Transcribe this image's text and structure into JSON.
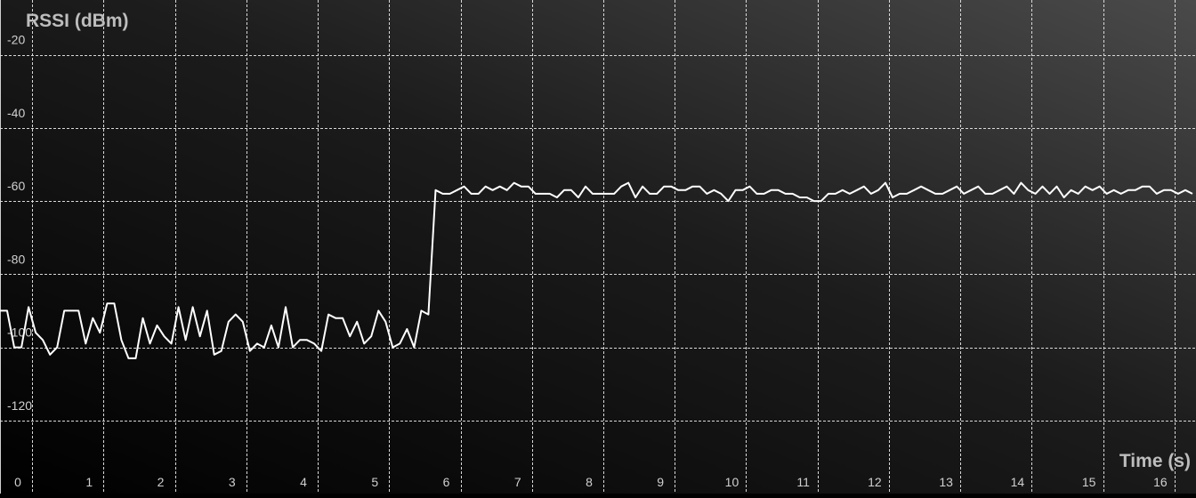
{
  "chart_data": {
    "type": "line",
    "title": "",
    "ylabel": "RSSI (dBm)",
    "xlabel": "Time (s)",
    "xlim": [
      -0.25,
      16.5
    ],
    "ylim": [
      -140,
      -5
    ],
    "grid": true,
    "y_ticks": [
      -20,
      -40,
      -60,
      -80,
      -100,
      -120
    ],
    "x_ticks": [
      0,
      1,
      2,
      3,
      4,
      5,
      6,
      7,
      8,
      9,
      10,
      11,
      12,
      13,
      14,
      15,
      16
    ],
    "y_grid": [
      -20,
      -40,
      -60,
      -80,
      -100,
      -120
    ],
    "x_grid": [
      0.2,
      1.2,
      2.2,
      3.2,
      4.2,
      5.2,
      6.2,
      7.2,
      8.2,
      9.2,
      10.2,
      11.2,
      12.2,
      13.2,
      14.2,
      15.2,
      16.2
    ],
    "series": [
      {
        "name": "RSSI",
        "color": "#ffffff",
        "x": [
          -0.25,
          -0.15,
          -0.05,
          0.05,
          0.15,
          0.25,
          0.35,
          0.45,
          0.55,
          0.65,
          0.75,
          0.85,
          0.95,
          1.05,
          1.15,
          1.25,
          1.35,
          1.45,
          1.55,
          1.65,
          1.75,
          1.85,
          1.95,
          2.05,
          2.15,
          2.25,
          2.35,
          2.45,
          2.55,
          2.65,
          2.75,
          2.85,
          2.95,
          3.05,
          3.15,
          3.25,
          3.35,
          3.45,
          3.55,
          3.65,
          3.75,
          3.85,
          3.95,
          4.05,
          4.15,
          4.25,
          4.35,
          4.45,
          4.55,
          4.65,
          4.75,
          4.85,
          4.95,
          5.05,
          5.15,
          5.25,
          5.35,
          5.45,
          5.55,
          5.65,
          5.75,
          5.85,
          5.95,
          6.05,
          6.15,
          6.25,
          6.35,
          6.45,
          6.55,
          6.65,
          6.75,
          6.85,
          6.95,
          7.05,
          7.15,
          7.25,
          7.35,
          7.45,
          7.55,
          7.65,
          7.75,
          7.85,
          7.95,
          8.05,
          8.15,
          8.25,
          8.35,
          8.45,
          8.55,
          8.65,
          8.75,
          8.85,
          8.95,
          9.05,
          9.15,
          9.25,
          9.35,
          9.45,
          9.55,
          9.65,
          9.75,
          9.85,
          9.95,
          10.05,
          10.15,
          10.25,
          10.35,
          10.45,
          10.55,
          10.65,
          10.75,
          10.85,
          10.95,
          11.05,
          11.15,
          11.25,
          11.35,
          11.45,
          11.55,
          11.65,
          11.75,
          11.85,
          11.95,
          12.05,
          12.15,
          12.25,
          12.35,
          12.45,
          12.55,
          12.65,
          12.75,
          12.85,
          12.95,
          13.05,
          13.15,
          13.25,
          13.35,
          13.45,
          13.55,
          13.65,
          13.75,
          13.85,
          13.95,
          14.05,
          14.15,
          14.25,
          14.35,
          14.45,
          14.55,
          14.65,
          14.75,
          14.85,
          14.95,
          15.05,
          15.15,
          15.25,
          15.35,
          15.45,
          15.55,
          15.65,
          15.75,
          15.85,
          15.95,
          16.05,
          16.15,
          16.25,
          16.35,
          16.45
        ],
        "values": [
          -90,
          -90,
          -100,
          -100,
          -89,
          -96,
          -98,
          -102,
          -100,
          -90,
          -90,
          -90,
          -99,
          -92,
          -96,
          -88,
          -88,
          -98,
          -103,
          -103,
          -92,
          -99,
          -94,
          -97,
          -99,
          -89,
          -98,
          -89,
          -97,
          -90,
          -102,
          -101,
          -93,
          -91,
          -93,
          -101,
          -99,
          -100,
          -94,
          -100,
          -89,
          -100,
          -98,
          -98,
          -99,
          -101,
          -91,
          -92,
          -92,
          -97,
          -93,
          -99,
          -97,
          -90,
          -93,
          -100,
          -99,
          -95,
          -100,
          -90,
          -91,
          -57,
          -58,
          -58,
          -57,
          -56,
          -58,
          -58,
          -56,
          -57,
          -56,
          -57,
          -55,
          -56,
          -56,
          -58,
          -58,
          -58,
          -59,
          -57,
          -57,
          -59,
          -56,
          -58,
          -58,
          -58,
          -58,
          -56,
          -55,
          -59,
          -56,
          -58,
          -58,
          -56,
          -56,
          -57,
          -57,
          -56,
          -56,
          -58,
          -57,
          -58,
          -60,
          -57,
          -57,
          -56,
          -58,
          -58,
          -57,
          -57,
          -58,
          -58,
          -59,
          -59,
          -60,
          -60,
          -58,
          -58,
          -57,
          -58,
          -57,
          -56,
          -58,
          -57,
          -55,
          -59,
          -58,
          -58,
          -57,
          -56,
          -57,
          -58,
          -58,
          -57,
          -56,
          -58,
          -57,
          -56,
          -58,
          -58,
          -57,
          -56,
          -58,
          -55,
          -57,
          -58,
          -56,
          -58,
          -56,
          -59,
          -57,
          -58,
          -56,
          -57,
          -56,
          -58,
          -57,
          -58,
          -57,
          -57,
          -56,
          -56,
          -58,
          -57,
          -57,
          -58,
          -57,
          -58
        ]
      }
    ]
  }
}
